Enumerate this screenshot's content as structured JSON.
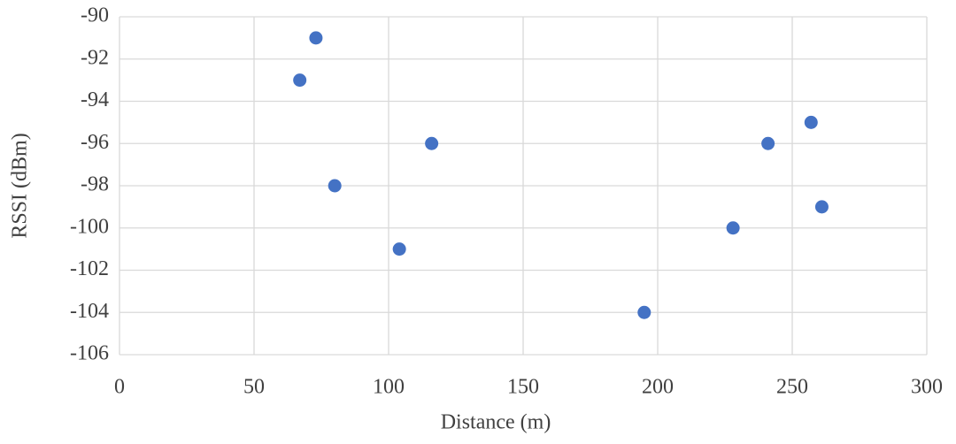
{
  "chart_data": {
    "type": "scatter",
    "x_label": "Distance (m)",
    "y_label": "RSSI (dBm)",
    "series": [
      {
        "color": "#4472c4",
        "x": [
          73,
          67,
          80,
          104,
          116,
          195,
          228,
          241,
          257,
          261
        ],
        "values": [
          -91,
          -93,
          -98,
          -101,
          -96,
          -104,
          -100,
          -96,
          -95,
          -99
        ]
      }
    ],
    "xlim": [
      0,
      300
    ],
    "xticks": [
      0,
      50,
      100,
      150,
      200,
      250,
      300
    ],
    "ylim": [
      -106,
      -90
    ],
    "yticks": [
      -106,
      -104,
      -102,
      -100,
      -98,
      -96,
      -94,
      -92,
      -90
    ],
    "grid": true
  }
}
